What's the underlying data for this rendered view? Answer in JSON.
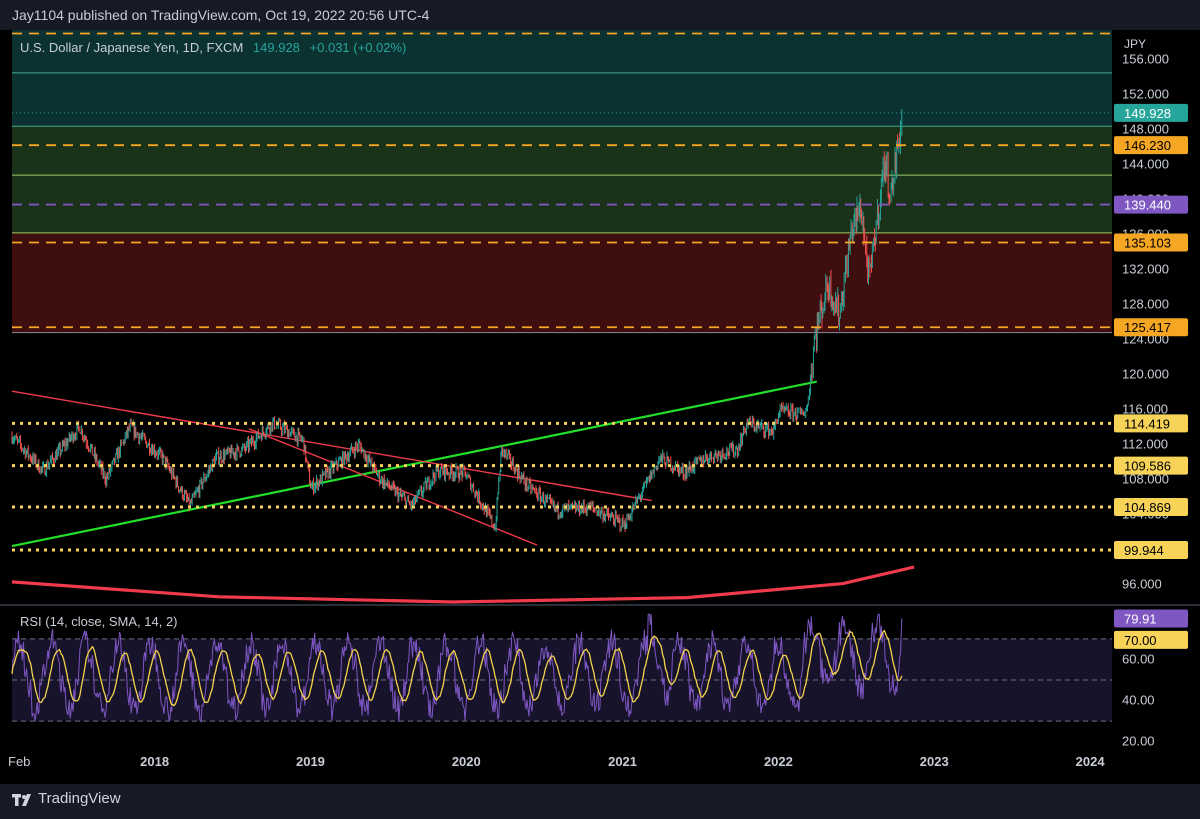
{
  "header": {
    "publisher_line": "Jay1104 published on TradingView.com, Oct 19, 2022 20:56 UTC-4"
  },
  "footer": {
    "brand": "TradingView"
  },
  "legend": {
    "symbol": "U.S. Dollar / Japanese Yen, 1D, FXCM",
    "last": "149.928",
    "change": "+0.031 (+0.02%)"
  },
  "colors": {
    "bg": "#000000",
    "up": "#26a69a",
    "down": "#ef5350",
    "yellow": "#f7d358",
    "orange": "#f5a623",
    "purple": "#7e57c2",
    "green": "#22e02a",
    "red": "#ef3b4c",
    "rsi_sma": "#f5d34c"
  },
  "chart_data": [
    {
      "type": "candlestick",
      "title": "",
      "currency_label": "JPY",
      "x_ticks": [
        "Feb",
        "2018",
        "2019",
        "2020",
        "2021",
        "2022",
        "2023",
        "2024"
      ],
      "x_tick_dates": [
        "2017-02-01",
        "2018-01-01",
        "2019-01-01",
        "2020-01-01",
        "2021-01-01",
        "2022-01-01",
        "2023-01-01",
        "2024-01-01"
      ],
      "x_range": [
        "2017-02-01",
        "2024-06-01"
      ],
      "y_ticks": [
        "96.000",
        "100.000",
        "104.000",
        "108.000",
        "112.000",
        "116.000",
        "120.000",
        "124.000",
        "128.000",
        "132.000",
        "136.000",
        "140.000",
        "144.000",
        "148.000",
        "152.000",
        "156.000"
      ],
      "y_range": [
        94.0,
        159.4
      ],
      "last_price": 149.928,
      "price_path": [
        [
          "2017-02-01",
          113.0
        ],
        [
          "2017-04-15",
          109.0
        ],
        [
          "2017-07-10",
          114.0
        ],
        [
          "2017-09-10",
          108.0
        ],
        [
          "2017-11-05",
          114.0
        ],
        [
          "2018-01-20",
          110.5
        ],
        [
          "2018-03-25",
          105.0
        ],
        [
          "2018-05-25",
          110.5
        ],
        [
          "2018-08-01",
          111.5
        ],
        [
          "2018-10-05",
          114.5
        ],
        [
          "2018-12-15",
          112.5
        ],
        [
          "2019-01-03",
          107.0
        ],
        [
          "2019-04-25",
          112.0
        ],
        [
          "2019-06-15",
          108.0
        ],
        [
          "2019-08-26",
          105.0
        ],
        [
          "2019-10-25",
          109.0
        ],
        [
          "2019-12-30",
          108.7
        ],
        [
          "2020-03-09",
          102.5
        ],
        [
          "2020-03-24",
          111.5
        ],
        [
          "2020-05-20",
          107.5
        ],
        [
          "2020-07-31",
          104.5
        ],
        [
          "2020-10-20",
          104.8
        ],
        [
          "2021-01-06",
          102.8
        ],
        [
          "2021-03-31",
          110.5
        ],
        [
          "2021-05-25",
          108.8
        ],
        [
          "2021-07-15",
          110.5
        ],
        [
          "2021-09-28",
          111.5
        ],
        [
          "2021-10-20",
          114.5
        ],
        [
          "2021-12-20",
          113.5
        ],
        [
          "2022-01-04",
          115.8
        ],
        [
          "2022-02-25",
          115.5
        ],
        [
          "2022-03-10",
          116.2
        ],
        [
          "2022-03-28",
          124.5
        ],
        [
          "2022-04-28",
          130.5
        ],
        [
          "2022-05-24",
          126.8
        ],
        [
          "2022-06-22",
          136.5
        ],
        [
          "2022-07-14",
          139.2
        ],
        [
          "2022-08-02",
          130.5
        ],
        [
          "2022-09-07",
          144.5
        ],
        [
          "2022-09-22",
          140.5
        ],
        [
          "2022-10-05",
          145.0
        ],
        [
          "2022-10-19",
          149.9
        ]
      ],
      "levels": [
        {
          "value": 159.0,
          "style": "dashed",
          "color": "#f5a623",
          "label": ""
        },
        {
          "value": 149.928,
          "style": "dotted",
          "color": "#26a69a",
          "label": "149.928"
        },
        {
          "value": 146.23,
          "style": "dashed",
          "color": "#f5a623",
          "label": "146.230"
        },
        {
          "value": 139.44,
          "style": "dashed",
          "color": "#7e57c2",
          "label": "139.440"
        },
        {
          "value": 135.103,
          "style": "dashed",
          "color": "#f5a623",
          "label": "135.103"
        },
        {
          "value": 125.417,
          "style": "dashed",
          "color": "#f5a623",
          "label": "125.417"
        },
        {
          "value": 114.419,
          "style": "dotted",
          "color": "#f7d358",
          "label": "114.419"
        },
        {
          "value": 109.586,
          "style": "dotted",
          "color": "#f7d358",
          "label": "109.586"
        },
        {
          "value": 104.869,
          "style": "dotted",
          "color": "#f7d358",
          "label": "104.869"
        },
        {
          "value": 99.944,
          "style": "dotted",
          "color": "#f7d358",
          "label": "99.944"
        }
      ],
      "zones": [
        {
          "from": 148.4,
          "to": 159.4,
          "color": "#0d3a3a"
        },
        {
          "from": 136.2,
          "to": 148.4,
          "color": "#1e3a1e"
        },
        {
          "from": 124.8,
          "to": 136.2,
          "color": "#4a1212"
        }
      ],
      "solid_levels": [
        154.5,
        148.4,
        142.8,
        136.2,
        124.8
      ],
      "trendlines": [
        {
          "color": "#22e02a",
          "from": [
            "2017-02-01",
            100.4
          ],
          "to": [
            "2022-04-01",
            119.2
          ]
        },
        {
          "color": "#ef3b4c",
          "from": [
            "2017-02-01",
            118.1
          ],
          "to": [
            "2021-03-10",
            105.6
          ]
        },
        {
          "color": "#ef3b4c",
          "from": [
            "2018-08-10",
            113.8
          ],
          "to": [
            "2020-06-15",
            100.5
          ]
        }
      ],
      "moving_average": {
        "color": "#ef3b4c",
        "points": [
          [
            "2017-02-01",
            96.3
          ],
          [
            "2018-06-01",
            94.6
          ],
          [
            "2019-12-01",
            94.0
          ],
          [
            "2021-06-01",
            94.5
          ],
          [
            "2022-06-01",
            96.1
          ],
          [
            "2022-11-15",
            98.0
          ]
        ]
      }
    },
    {
      "type": "line",
      "title": "RSI (14, close, SMA, 14, 2)",
      "y_ticks": [
        "20.00",
        "40.00",
        "60.00"
      ],
      "y_range": [
        15,
        85
      ],
      "bands": [
        30,
        50,
        70
      ],
      "last_rsi": "79.91",
      "last_sma": "70.00",
      "rsi_color": "#7e57c2",
      "sma_color": "#f5d34c"
    }
  ]
}
